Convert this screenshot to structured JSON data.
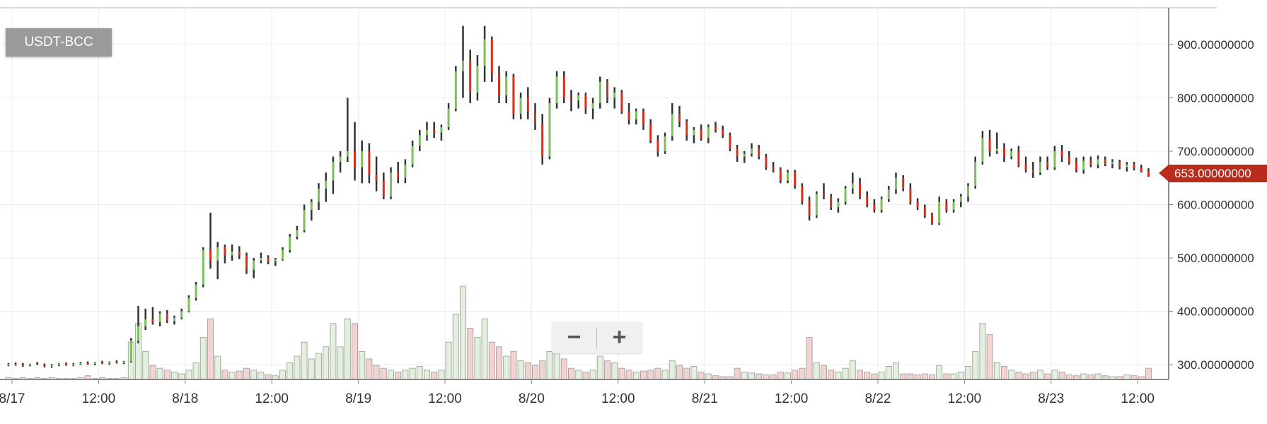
{
  "pair_label": "USDT-BCC",
  "last_price_label": "653.00000000",
  "zoom": {
    "zoom_out_icon": "minus-icon",
    "zoom_in_icon": "plus-icon",
    "zoom_out": "−",
    "zoom_in": "+"
  },
  "colors": {
    "up": "#7cc05f",
    "down": "#d2311d",
    "wick": "#2f3437",
    "vol_up": "#e3f0dc",
    "vol_down": "#f5d2d2",
    "vol_stroke": "#a8a8a8",
    "last_price": "#b92c1c",
    "grid": "#ececec"
  },
  "chart_data": {
    "type": "candlestick",
    "title": "",
    "ylim": [
      270,
      935
    ],
    "y_ticks": [
      {
        "value": 900,
        "label": "900.00000000"
      },
      {
        "value": 800,
        "label": "800.00000000"
      },
      {
        "value": 700,
        "label": "700.00000000"
      },
      {
        "value": 600,
        "label": "600.00000000"
      },
      {
        "value": 500,
        "label": "500.00000000"
      },
      {
        "value": 400,
        "label": "400.00000000"
      },
      {
        "value": 300,
        "label": "300.00000000"
      }
    ],
    "x_ticks": [
      {
        "t": "8/17 00:00",
        "label": "8/17"
      },
      {
        "t": "8/17 12:00",
        "label": "12:00"
      },
      {
        "t": "8/18 00:00",
        "label": "8/18"
      },
      {
        "t": "8/18 12:00",
        "label": "12:00"
      },
      {
        "t": "8/19 00:00",
        "label": "8/19"
      },
      {
        "t": "8/19 12:00",
        "label": "12:00"
      },
      {
        "t": "8/20 00:00",
        "label": "8/20"
      },
      {
        "t": "8/20 12:00",
        "label": "12:00"
      },
      {
        "t": "8/21 00:00",
        "label": "8/21"
      },
      {
        "t": "8/21 12:00",
        "label": "12:00"
      },
      {
        "t": "8/22 00:00",
        "label": "8/22"
      },
      {
        "t": "8/22 12:00",
        "label": "12:00"
      },
      {
        "t": "8/23 00:00",
        "label": "8/23"
      },
      {
        "t": "8/23 12:00",
        "label": "12:00"
      }
    ],
    "grid": true,
    "last_price": 653,
    "columns": [
      "time",
      "open",
      "high",
      "low",
      "close",
      "volume"
    ],
    "candles": [
      [
        "8/16 23:00",
        300,
        303,
        297,
        301,
        2
      ],
      [
        "8/17 00:00",
        301,
        304,
        298,
        300,
        1
      ],
      [
        "8/17 01:00",
        300,
        303,
        296,
        299,
        2
      ],
      [
        "8/17 02:00",
        299,
        302,
        297,
        302,
        1
      ],
      [
        "8/17 03:00",
        302,
        305,
        299,
        300,
        2
      ],
      [
        "8/17 04:00",
        300,
        302,
        295,
        297,
        1
      ],
      [
        "8/17 05:00",
        297,
        301,
        294,
        299,
        2
      ],
      [
        "8/17 06:00",
        299,
        303,
        297,
        302,
        1
      ],
      [
        "8/17 07:00",
        302,
        304,
        298,
        300,
        1
      ],
      [
        "8/17 08:00",
        300,
        303,
        297,
        301,
        1
      ],
      [
        "8/17 09:00",
        301,
        305,
        299,
        303,
        2
      ],
      [
        "8/17 10:00",
        303,
        306,
        300,
        302,
        4
      ],
      [
        "8/17 11:00",
        302,
        305,
        299,
        304,
        1
      ],
      [
        "8/17 12:00",
        304,
        307,
        301,
        303,
        2
      ],
      [
        "8/17 13:00",
        303,
        306,
        300,
        305,
        1
      ],
      [
        "8/17 14:00",
        305,
        308,
        302,
        304,
        1
      ],
      [
        "8/17 15:00",
        304,
        307,
        301,
        306,
        2
      ],
      [
        "8/17 16:00",
        306,
        350,
        304,
        345,
        40
      ],
      [
        "8/17 17:00",
        345,
        410,
        340,
        372,
        60
      ],
      [
        "8/17 18:00",
        372,
        405,
        365,
        385,
        30
      ],
      [
        "8/17 19:00",
        385,
        408,
        375,
        380,
        15
      ],
      [
        "8/17 20:00",
        380,
        400,
        372,
        396,
        12
      ],
      [
        "8/17 21:00",
        396,
        402,
        378,
        382,
        10
      ],
      [
        "8/17 22:00",
        382,
        392,
        375,
        388,
        8
      ],
      [
        "8/17 23:00",
        388,
        405,
        385,
        400,
        6
      ],
      [
        "8/18 00:00",
        400,
        430,
        398,
        425,
        10
      ],
      [
        "8/18 01:00",
        425,
        455,
        420,
        450,
        18
      ],
      [
        "8/18 02:00",
        450,
        520,
        445,
        515,
        45
      ],
      [
        "8/18 03:00",
        515,
        585,
        480,
        495,
        65
      ],
      [
        "8/18 04:00",
        495,
        530,
        460,
        520,
        25
      ],
      [
        "8/18 05:00",
        520,
        525,
        490,
        505,
        10
      ],
      [
        "8/18 06:00",
        505,
        525,
        495,
        512,
        8
      ],
      [
        "8/18 07:00",
        512,
        522,
        498,
        505,
        9
      ],
      [
        "8/18 08:00",
        505,
        510,
        470,
        478,
        12
      ],
      [
        "8/18 09:00",
        478,
        500,
        462,
        495,
        10
      ],
      [
        "8/18 10:00",
        495,
        510,
        490,
        500,
        8
      ],
      [
        "8/18 11:00",
        500,
        505,
        488,
        494,
        5
      ],
      [
        "8/18 12:00",
        494,
        500,
        485,
        497,
        4
      ],
      [
        "8/18 13:00",
        497,
        520,
        495,
        515,
        10
      ],
      [
        "8/18 14:00",
        515,
        545,
        510,
        540,
        18
      ],
      [
        "8/18 15:00",
        540,
        560,
        535,
        552,
        25
      ],
      [
        "8/18 16:00",
        552,
        600,
        548,
        590,
        40
      ],
      [
        "8/18 17:00",
        590,
        610,
        570,
        605,
        22
      ],
      [
        "8/18 18:00",
        605,
        640,
        590,
        630,
        28
      ],
      [
        "8/18 19:00",
        630,
        660,
        605,
        645,
        35
      ],
      [
        "8/18 20:00",
        645,
        690,
        620,
        680,
        60
      ],
      [
        "8/18 21:00",
        680,
        700,
        660,
        690,
        35
      ],
      [
        "8/18 22:00",
        690,
        800,
        680,
        700,
        65
      ],
      [
        "8/18 23:00",
        700,
        755,
        645,
        670,
        60
      ],
      [
        "8/19 00:00",
        670,
        720,
        640,
        700,
        30
      ],
      [
        "8/19 01:00",
        700,
        715,
        640,
        655,
        22
      ],
      [
        "8/19 02:00",
        655,
        690,
        625,
        645,
        15
      ],
      [
        "8/19 03:00",
        645,
        660,
        610,
        615,
        12
      ],
      [
        "8/19 04:00",
        615,
        670,
        610,
        660,
        10
      ],
      [
        "8/19 05:00",
        660,
        680,
        640,
        650,
        8
      ],
      [
        "8/19 06:00",
        650,
        685,
        640,
        675,
        10
      ],
      [
        "8/19 07:00",
        675,
        720,
        670,
        710,
        12
      ],
      [
        "8/19 08:00",
        710,
        740,
        700,
        730,
        14
      ],
      [
        "8/19 09:00",
        730,
        755,
        720,
        740,
        10
      ],
      [
        "8/19 10:00",
        740,
        755,
        725,
        735,
        8
      ],
      [
        "8/19 11:00",
        735,
        750,
        720,
        745,
        10
      ],
      [
        "8/19 12:00",
        745,
        790,
        740,
        780,
        40
      ],
      [
        "8/19 13:00",
        780,
        860,
        775,
        850,
        70
      ],
      [
        "8/19 14:00",
        850,
        935,
        800,
        870,
        100
      ],
      [
        "8/19 15:00",
        870,
        890,
        790,
        810,
        55
      ],
      [
        "8/19 16:00",
        810,
        880,
        795,
        860,
        45
      ],
      [
        "8/19 17:00",
        860,
        935,
        830,
        910,
        65
      ],
      [
        "8/19 18:00",
        910,
        915,
        830,
        845,
        40
      ],
      [
        "8/19 19:00",
        845,
        860,
        790,
        805,
        35
      ],
      [
        "8/19 20:00",
        805,
        850,
        790,
        840,
        25
      ],
      [
        "8/19 21:00",
        840,
        845,
        760,
        770,
        30
      ],
      [
        "8/19 22:00",
        770,
        810,
        760,
        800,
        20
      ],
      [
        "8/19 23:00",
        800,
        820,
        760,
        775,
        18
      ],
      [
        "8/20 00:00",
        775,
        790,
        740,
        750,
        15
      ],
      [
        "8/20 01:00",
        750,
        770,
        675,
        690,
        20
      ],
      [
        "8/20 02:00",
        690,
        800,
        685,
        790,
        30
      ],
      [
        "8/20 03:00",
        790,
        850,
        780,
        840,
        40
      ],
      [
        "8/20 04:00",
        840,
        850,
        790,
        800,
        22
      ],
      [
        "8/20 05:00",
        800,
        815,
        775,
        795,
        12
      ],
      [
        "8/20 06:00",
        795,
        810,
        780,
        805,
        10
      ],
      [
        "8/20 07:00",
        805,
        810,
        770,
        780,
        8
      ],
      [
        "8/20 08:00",
        780,
        800,
        760,
        790,
        10
      ],
      [
        "8/20 09:00",
        790,
        840,
        780,
        830,
        25
      ],
      [
        "8/20 10:00",
        830,
        835,
        790,
        800,
        20
      ],
      [
        "8/20 11:00",
        800,
        820,
        780,
        810,
        18
      ],
      [
        "8/20 12:00",
        810,
        815,
        770,
        775,
        12
      ],
      [
        "8/20 13:00",
        775,
        790,
        750,
        760,
        10
      ],
      [
        "8/20 14:00",
        760,
        780,
        750,
        775,
        8
      ],
      [
        "8/20 15:00",
        775,
        780,
        740,
        750,
        9
      ],
      [
        "8/20 16:00",
        750,
        760,
        715,
        720,
        10
      ],
      [
        "8/20 17:00",
        720,
        730,
        690,
        700,
        12
      ],
      [
        "8/20 18:00",
        700,
        735,
        695,
        728,
        10
      ],
      [
        "8/20 19:00",
        728,
        790,
        720,
        770,
        20
      ],
      [
        "8/20 20:00",
        770,
        785,
        745,
        755,
        15
      ],
      [
        "8/20 21:00",
        755,
        760,
        720,
        730,
        12
      ],
      [
        "8/20 22:00",
        730,
        745,
        715,
        740,
        14
      ],
      [
        "8/20 23:00",
        740,
        750,
        720,
        725,
        8
      ],
      [
        "8/21 00:00",
        725,
        750,
        715,
        745,
        6
      ],
      [
        "8/21 01:00",
        745,
        755,
        735,
        740,
        4
      ],
      [
        "8/21 02:00",
        740,
        748,
        725,
        730,
        3
      ],
      [
        "8/21 03:00",
        730,
        735,
        700,
        705,
        3
      ],
      [
        "8/21 04:00",
        705,
        712,
        680,
        690,
        12
      ],
      [
        "8/21 05:00",
        690,
        700,
        678,
        695,
        8
      ],
      [
        "8/21 06:00",
        695,
        715,
        690,
        705,
        7
      ],
      [
        "8/21 07:00",
        705,
        712,
        685,
        690,
        6
      ],
      [
        "8/21 08:00",
        690,
        695,
        665,
        670,
        5
      ],
      [
        "8/21 09:00",
        670,
        680,
        660,
        665,
        5
      ],
      [
        "8/21 10:00",
        665,
        670,
        640,
        645,
        8
      ],
      [
        "8/21 11:00",
        645,
        665,
        640,
        660,
        7
      ],
      [
        "8/21 12:00",
        660,
        665,
        630,
        635,
        10
      ],
      [
        "8/21 13:00",
        635,
        640,
        600,
        605,
        12
      ],
      [
        "8/21 14:00",
        605,
        615,
        570,
        580,
        45
      ],
      [
        "8/21 15:00",
        580,
        625,
        575,
        620,
        18
      ],
      [
        "8/21 16:00",
        620,
        640,
        610,
        615,
        15
      ],
      [
        "8/21 17:00",
        615,
        620,
        590,
        595,
        10
      ],
      [
        "8/21 18:00",
        595,
        612,
        585,
        605,
        8
      ],
      [
        "8/21 19:00",
        605,
        635,
        600,
        630,
        12
      ],
      [
        "8/21 20:00",
        630,
        660,
        620,
        640,
        20
      ],
      [
        "8/21 21:00",
        640,
        650,
        610,
        615,
        10
      ],
      [
        "8/21 22:00",
        615,
        625,
        595,
        600,
        8
      ],
      [
        "8/21 23:00",
        600,
        610,
        585,
        590,
        6
      ],
      [
        "8/22 00:00",
        590,
        615,
        585,
        610,
        8
      ],
      [
        "8/22 01:00",
        610,
        635,
        605,
        628,
        14
      ],
      [
        "8/22 02:00",
        628,
        660,
        620,
        650,
        18
      ],
      [
        "8/22 03:00",
        650,
        655,
        625,
        630,
        6
      ],
      [
        "8/22 04:00",
        630,
        640,
        600,
        605,
        6
      ],
      [
        "8/22 05:00",
        605,
        612,
        590,
        595,
        5
      ],
      [
        "8/22 06:00",
        595,
        600,
        575,
        580,
        6
      ],
      [
        "8/22 07:00",
        580,
        585,
        562,
        565,
        5
      ],
      [
        "8/22 08:00",
        565,
        615,
        562,
        605,
        15
      ],
      [
        "8/22 09:00",
        605,
        610,
        585,
        590,
        6
      ],
      [
        "8/22 10:00",
        590,
        610,
        585,
        605,
        6
      ],
      [
        "8/22 11:00",
        605,
        620,
        595,
        615,
        8
      ],
      [
        "8/22 12:00",
        615,
        640,
        605,
        635,
        14
      ],
      [
        "8/22 13:00",
        635,
        690,
        630,
        680,
        30
      ],
      [
        "8/22 14:00",
        680,
        738,
        675,
        725,
        60
      ],
      [
        "8/22 15:00",
        725,
        740,
        690,
        700,
        48
      ],
      [
        "8/22 16:00",
        700,
        735,
        695,
        705,
        18
      ],
      [
        "8/22 17:00",
        705,
        715,
        680,
        690,
        14
      ],
      [
        "8/22 18:00",
        690,
        705,
        685,
        700,
        10
      ],
      [
        "8/22 19:00",
        700,
        710,
        670,
        675,
        8
      ],
      [
        "8/22 20:00",
        675,
        690,
        660,
        665,
        6
      ],
      [
        "8/22 21:00",
        665,
        680,
        650,
        660,
        8
      ],
      [
        "8/22 22:00",
        660,
        690,
        655,
        680,
        10
      ],
      [
        "8/22 23:00",
        680,
        690,
        665,
        670,
        6
      ],
      [
        "8/23 00:00",
        670,
        710,
        665,
        700,
        10
      ],
      [
        "8/23 01:00",
        700,
        712,
        680,
        690,
        8
      ],
      [
        "8/23 02:00",
        690,
        700,
        675,
        680,
        5
      ],
      [
        "8/23 03:00",
        680,
        688,
        660,
        665,
        4
      ],
      [
        "8/23 04:00",
        665,
        690,
        658,
        682,
        6
      ],
      [
        "8/23 05:00",
        682,
        690,
        670,
        675,
        5
      ],
      [
        "8/23 06:00",
        675,
        692,
        668,
        685,
        6
      ],
      [
        "8/23 07:00",
        685,
        690,
        672,
        676,
        4
      ],
      [
        "8/23 08:00",
        676,
        685,
        668,
        680,
        3
      ],
      [
        "8/23 09:00",
        680,
        684,
        666,
        670,
        3
      ],
      [
        "8/23 10:00",
        670,
        680,
        662,
        675,
        5
      ],
      [
        "8/23 11:00",
        675,
        680,
        664,
        668,
        4
      ],
      [
        "8/23 12:00",
        668,
        675,
        660,
        662,
        3
      ],
      [
        "8/23 13:00",
        662,
        668,
        652,
        653,
        12
      ]
    ]
  }
}
